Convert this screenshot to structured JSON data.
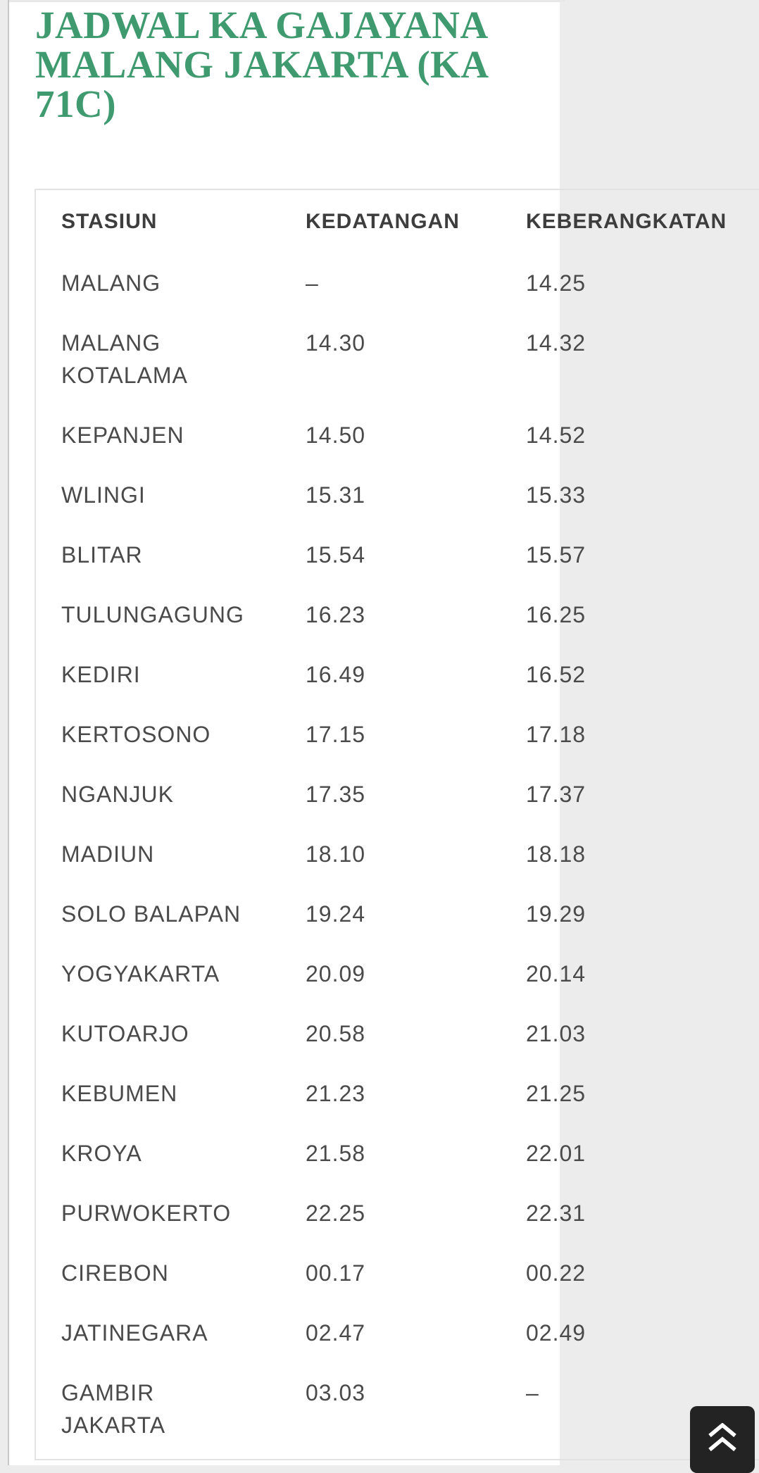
{
  "page": {
    "title": "JADWAL KA GAJAYANA MALANG JAKARTA (KA 71C)",
    "title_color": "#3f9b6f",
    "background_color": "#ececec",
    "content_background": "#ffffff"
  },
  "table": {
    "columns": [
      "STASIUN",
      "KEDATANGAN",
      "KEBERANGKATAN"
    ],
    "empty_marker": "–",
    "rows": [
      {
        "stasiun": "MALANG",
        "kedatangan": "–",
        "keberangkatan": "14.25"
      },
      {
        "stasiun": "MALANG KOTALAMA",
        "kedatangan": "14.30",
        "keberangkatan": "14.32"
      },
      {
        "stasiun": "KEPANJEN",
        "kedatangan": "14.50",
        "keberangkatan": "14.52"
      },
      {
        "stasiun": "WLINGI",
        "kedatangan": "15.31",
        "keberangkatan": "15.33"
      },
      {
        "stasiun": "BLITAR",
        "kedatangan": "15.54",
        "keberangkatan": "15.57"
      },
      {
        "stasiun": "TULUNGAGUNG",
        "kedatangan": "16.23",
        "keberangkatan": "16.25"
      },
      {
        "stasiun": "KEDIRI",
        "kedatangan": "16.49",
        "keberangkatan": "16.52"
      },
      {
        "stasiun": "KERTOSONO",
        "kedatangan": "17.15",
        "keberangkatan": "17.18"
      },
      {
        "stasiun": "NGANJUK",
        "kedatangan": "17.35",
        "keberangkatan": "17.37"
      },
      {
        "stasiun": "MADIUN",
        "kedatangan": "18.10",
        "keberangkatan": "18.18"
      },
      {
        "stasiun": "SOLO BALAPAN",
        "kedatangan": "19.24",
        "keberangkatan": "19.29"
      },
      {
        "stasiun": "YOGYAKARTA",
        "kedatangan": "20.09",
        "keberangkatan": "20.14"
      },
      {
        "stasiun": "KUTOARJO",
        "kedatangan": "20.58",
        "keberangkatan": "21.03"
      },
      {
        "stasiun": "KEBUMEN",
        "kedatangan": "21.23",
        "keberangkatan": "21.25"
      },
      {
        "stasiun": "KROYA",
        "kedatangan": "21.58",
        "keberangkatan": "22.01"
      },
      {
        "stasiun": "PURWOKERTO",
        "kedatangan": "22.25",
        "keberangkatan": "22.31"
      },
      {
        "stasiun": "CIREBON",
        "kedatangan": "00.17",
        "keberangkatan": "00.22"
      },
      {
        "stasiun": "JATINEGARA",
        "kedatangan": "02.47",
        "keberangkatan": "02.49"
      },
      {
        "stasiun": "GAMBIR JAKARTA",
        "kedatangan": "03.03",
        "keberangkatan": "–"
      }
    ]
  },
  "scroll_top_button": {
    "icon": "double-chevron-up",
    "background_color": "#232323",
    "icon_color": "#ffffff"
  }
}
